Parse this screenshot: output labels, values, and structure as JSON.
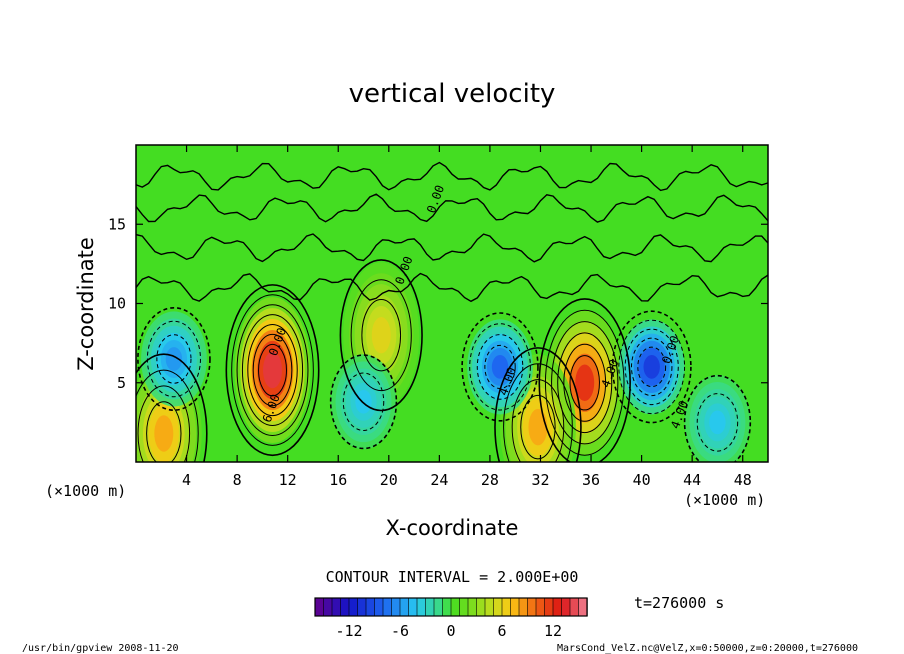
{
  "chart_data": {
    "type": "heatmap",
    "title": "vertical velocity",
    "xlabel": "X-coordinate",
    "ylabel": "Z-coordinate",
    "x_unit_left": "(×1000 m)",
    "x_unit_right": "(×1000 m)",
    "xlim": [
      0,
      50
    ],
    "ylim": [
      0,
      20
    ],
    "xticks": [
      4,
      8,
      12,
      16,
      20,
      24,
      28,
      32,
      36,
      40,
      44,
      48
    ],
    "yticks": [
      5,
      10,
      15
    ],
    "contour_interval_text": "CONTOUR INTERVAL = 2.000E+00",
    "colorbar_ticks": [
      -12,
      -6,
      0,
      6,
      12
    ],
    "colorbar_range": [
      -16,
      16
    ],
    "time_label": "t=276000 s",
    "footer_left": "/usr/bin/gpview  2008-11-20",
    "footer_right": "MarsCond_VelZ.nc@VelZ,x=0:50000,z=0:20000,t=276000",
    "contour_labels": [
      {
        "text": "0.00",
        "x": 24,
        "y": 16.5
      },
      {
        "text": "0.00",
        "x": 21.5,
        "y": 12.0
      },
      {
        "text": "0.00",
        "x": 11.5,
        "y": 7.5
      },
      {
        "text": "4.00",
        "x": 29.7,
        "y": 5.0
      },
      {
        "text": "4.00",
        "x": 37.8,
        "y": 5.5
      },
      {
        "text": "0.00",
        "x": 42.6,
        "y": 7.0
      },
      {
        "text": "4.00",
        "x": 43.3,
        "y": 2.9
      },
      {
        "text": "6.00",
        "x": 11.0,
        "y": 3.3
      }
    ],
    "features": [
      {
        "kind": "updraft",
        "x": 10.8,
        "z": 5.8,
        "peak": 14
      },
      {
        "kind": "updraft",
        "x": 35.5,
        "z": 5.0,
        "peak": 12
      },
      {
        "kind": "updraft",
        "x": 31.8,
        "z": 2.2,
        "peak": 8
      },
      {
        "kind": "updraft",
        "x": 2.2,
        "z": 1.8,
        "peak": 8
      },
      {
        "kind": "updraft",
        "x": 19.4,
        "z": 8.0,
        "peak": 6
      },
      {
        "kind": "downdraft",
        "x": 3.0,
        "z": 6.5,
        "peak": -6
      },
      {
        "kind": "downdraft",
        "x": 28.8,
        "z": 6.0,
        "peak": -8
      },
      {
        "kind": "downdraft",
        "x": 40.8,
        "z": 6.0,
        "peak": -10
      },
      {
        "kind": "downdraft",
        "x": 18.0,
        "z": 3.8,
        "peak": -4
      },
      {
        "kind": "downdraft",
        "x": 46.0,
        "z": 2.5,
        "peak": -4
      }
    ]
  },
  "colors": {
    "background": "#44dd22",
    "strong_positive": "#e8141a",
    "strong_negative": "#1433d6"
  }
}
